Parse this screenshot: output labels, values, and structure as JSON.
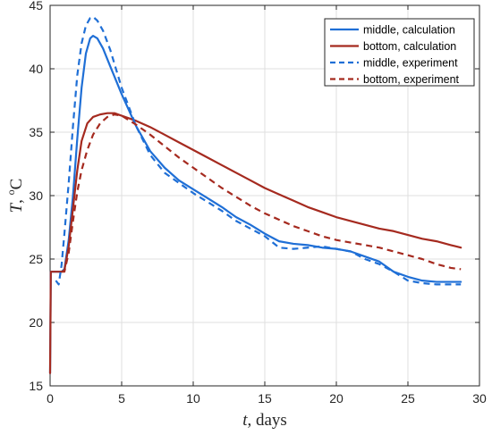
{
  "chart_data": {
    "type": "line",
    "xlabel": {
      "symbol": "t",
      "rest": ", days"
    },
    "ylabel": {
      "symbol": "T",
      "rest": ", ",
      "superscript": "o",
      "unit": "C"
    },
    "xlim": [
      0,
      30
    ],
    "ylim": [
      15,
      45
    ],
    "xticks": [
      0,
      5,
      10,
      15,
      20,
      25,
      30
    ],
    "yticks": [
      15,
      20,
      25,
      30,
      35,
      40,
      45
    ],
    "grid": true,
    "legend_position": "top-right",
    "series": [
      {
        "name": "middle, calculation",
        "color": "#1f6fd6",
        "dash": "solid",
        "points": [
          [
            0.0,
            16.0
          ],
          [
            0.05,
            24.0
          ],
          [
            0.3,
            24.0
          ],
          [
            0.8,
            24.0
          ],
          [
            1.0,
            24.2
          ],
          [
            1.3,
            26.5
          ],
          [
            1.6,
            30.0
          ],
          [
            1.9,
            34.5
          ],
          [
            2.2,
            38.5
          ],
          [
            2.5,
            41.2
          ],
          [
            2.8,
            42.4
          ],
          [
            3.0,
            42.6
          ],
          [
            3.3,
            42.4
          ],
          [
            3.7,
            41.6
          ],
          [
            4.2,
            40.2
          ],
          [
            5.0,
            38.0
          ],
          [
            6.0,
            35.5
          ],
          [
            7.0,
            33.5
          ],
          [
            8.0,
            32.2
          ],
          [
            9.0,
            31.2
          ],
          [
            10.0,
            30.5
          ],
          [
            11.0,
            29.8
          ],
          [
            12.0,
            29.1
          ],
          [
            13.0,
            28.3
          ],
          [
            14.0,
            27.7
          ],
          [
            15.0,
            27.0
          ],
          [
            16.0,
            26.4
          ],
          [
            17.0,
            26.2
          ],
          [
            18.0,
            26.1
          ],
          [
            19.0,
            25.9
          ],
          [
            20.0,
            25.8
          ],
          [
            21.0,
            25.6
          ],
          [
            22.0,
            25.2
          ],
          [
            23.0,
            24.8
          ],
          [
            24.0,
            24.0
          ],
          [
            25.0,
            23.6
          ],
          [
            26.0,
            23.3
          ],
          [
            27.0,
            23.2
          ],
          [
            28.0,
            23.2
          ],
          [
            28.7,
            23.2
          ]
        ]
      },
      {
        "name": "bottom, calculation",
        "color": "#a52a1f",
        "dash": "solid",
        "points": [
          [
            0.0,
            16.0
          ],
          [
            0.05,
            24.0
          ],
          [
            0.3,
            24.0
          ],
          [
            0.8,
            24.0
          ],
          [
            1.0,
            24.1
          ],
          [
            1.3,
            26.0
          ],
          [
            1.6,
            29.0
          ],
          [
            1.9,
            32.0
          ],
          [
            2.2,
            34.3
          ],
          [
            2.6,
            35.7
          ],
          [
            3.0,
            36.2
          ],
          [
            3.5,
            36.4
          ],
          [
            4.0,
            36.5
          ],
          [
            4.5,
            36.5
          ],
          [
            5.0,
            36.3
          ],
          [
            6.0,
            35.9
          ],
          [
            7.0,
            35.4
          ],
          [
            8.0,
            34.8
          ],
          [
            9.0,
            34.2
          ],
          [
            10.0,
            33.6
          ],
          [
            11.0,
            33.0
          ],
          [
            12.0,
            32.4
          ],
          [
            13.0,
            31.8
          ],
          [
            14.0,
            31.2
          ],
          [
            15.0,
            30.6
          ],
          [
            16.0,
            30.1
          ],
          [
            17.0,
            29.6
          ],
          [
            18.0,
            29.1
          ],
          [
            19.0,
            28.7
          ],
          [
            20.0,
            28.3
          ],
          [
            21.0,
            28.0
          ],
          [
            22.0,
            27.7
          ],
          [
            23.0,
            27.4
          ],
          [
            24.0,
            27.2
          ],
          [
            25.0,
            26.9
          ],
          [
            26.0,
            26.6
          ],
          [
            27.0,
            26.4
          ],
          [
            28.0,
            26.1
          ],
          [
            28.7,
            25.9
          ]
        ]
      },
      {
        "name": "middle, experiment",
        "color": "#1f6fd6",
        "dash": "dashed",
        "points": [
          [
            0.4,
            23.3
          ],
          [
            0.6,
            23.0
          ],
          [
            0.8,
            24.5
          ],
          [
            1.0,
            27.0
          ],
          [
            1.3,
            31.0
          ],
          [
            1.6,
            35.5
          ],
          [
            1.9,
            39.5
          ],
          [
            2.2,
            42.0
          ],
          [
            2.5,
            43.4
          ],
          [
            2.8,
            44.0
          ],
          [
            3.0,
            44.1
          ],
          [
            3.3,
            43.8
          ],
          [
            3.7,
            43.0
          ],
          [
            4.2,
            41.5
          ],
          [
            5.0,
            38.5
          ],
          [
            6.0,
            35.5
          ],
          [
            7.0,
            33.2
          ],
          [
            8.0,
            31.8
          ],
          [
            9.0,
            31.0
          ],
          [
            10.0,
            30.2
          ],
          [
            11.0,
            29.5
          ],
          [
            12.0,
            28.8
          ],
          [
            13.0,
            28.0
          ],
          [
            14.0,
            27.4
          ],
          [
            15.0,
            26.8
          ],
          [
            16.0,
            25.9
          ],
          [
            17.0,
            25.8
          ],
          [
            18.0,
            25.9
          ],
          [
            19.0,
            26.0
          ],
          [
            20.0,
            25.8
          ],
          [
            21.0,
            25.6
          ],
          [
            22.0,
            25.0
          ],
          [
            23.0,
            24.6
          ],
          [
            24.0,
            24.0
          ],
          [
            25.0,
            23.3
          ],
          [
            26.0,
            23.1
          ],
          [
            27.0,
            23.0
          ],
          [
            28.0,
            23.0
          ],
          [
            28.7,
            23.0
          ]
        ]
      },
      {
        "name": "bottom, experiment",
        "color": "#a52a1f",
        "dash": "dashed",
        "points": [
          [
            0.8,
            24.0
          ],
          [
            1.0,
            24.0
          ],
          [
            1.3,
            25.5
          ],
          [
            1.6,
            28.0
          ],
          [
            1.9,
            30.3
          ],
          [
            2.2,
            32.0
          ],
          [
            2.6,
            33.6
          ],
          [
            3.0,
            34.8
          ],
          [
            3.5,
            35.7
          ],
          [
            4.0,
            36.2
          ],
          [
            4.5,
            36.4
          ],
          [
            5.0,
            36.3
          ],
          [
            6.0,
            35.6
          ],
          [
            7.0,
            34.8
          ],
          [
            8.0,
            33.9
          ],
          [
            9.0,
            33.0
          ],
          [
            10.0,
            32.2
          ],
          [
            11.0,
            31.4
          ],
          [
            12.0,
            30.6
          ],
          [
            13.0,
            29.9
          ],
          [
            14.0,
            29.2
          ],
          [
            15.0,
            28.6
          ],
          [
            16.0,
            28.1
          ],
          [
            17.0,
            27.6
          ],
          [
            18.0,
            27.2
          ],
          [
            19.0,
            26.8
          ],
          [
            20.0,
            26.5
          ],
          [
            21.0,
            26.3
          ],
          [
            22.0,
            26.1
          ],
          [
            23.0,
            25.9
          ],
          [
            24.0,
            25.6
          ],
          [
            25.0,
            25.3
          ],
          [
            26.0,
            25.0
          ],
          [
            27.0,
            24.6
          ],
          [
            28.0,
            24.3
          ],
          [
            28.7,
            24.2
          ]
        ]
      }
    ]
  }
}
